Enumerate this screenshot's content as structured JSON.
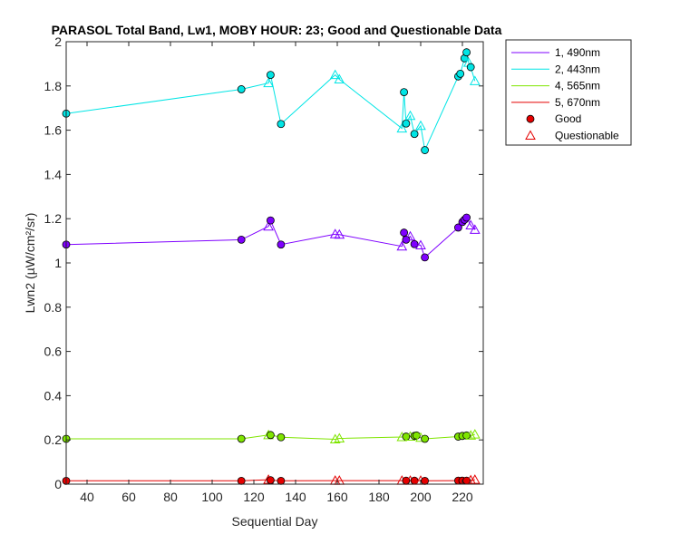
{
  "chart_data": {
    "type": "line",
    "title": "PARASOL Total Band, Lw1, MOBY HOUR: 23;  Good and Questionable Data",
    "xlabel": "Sequential Day",
    "ylabel": "Lwn2 (µW/cm²/sr)",
    "xlim": [
      30,
      230
    ],
    "ylim": [
      0,
      2
    ],
    "x_ticks": [
      40,
      60,
      80,
      100,
      120,
      140,
      160,
      180,
      200,
      220
    ],
    "y_ticks": [
      0,
      0.2,
      0.4,
      0.6,
      0.8,
      1,
      1.2,
      1.4,
      1.6,
      1.8,
      2
    ],
    "x_tick_labels": [
      "40",
      "60",
      "80",
      "100",
      "120",
      "140",
      "160",
      "180",
      "200",
      "220"
    ],
    "y_tick_labels": [
      "0",
      "0.2",
      "0.4",
      "0.6",
      "0.8",
      "1",
      "1.2",
      "1.4",
      "1.6",
      "1.8",
      "2"
    ],
    "grid": false,
    "legend_position": "outside-top-right",
    "series": [
      {
        "name": "1, 490nm",
        "color": "#7f00ff",
        "points": [
          {
            "x": 30,
            "y": 1.083,
            "q": "good"
          },
          {
            "x": 114,
            "y": 1.105,
            "q": "good"
          },
          {
            "x": 127,
            "y": 1.165,
            "q": "questionable"
          },
          {
            "x": 128,
            "y": 1.192,
            "q": "good"
          },
          {
            "x": 133,
            "y": 1.083,
            "q": "good"
          },
          {
            "x": 159,
            "y": 1.13,
            "q": "questionable"
          },
          {
            "x": 161,
            "y": 1.128,
            "q": "questionable"
          },
          {
            "x": 191,
            "y": 1.075,
            "q": "questionable"
          },
          {
            "x": 192,
            "y": 1.137,
            "q": "good"
          },
          {
            "x": 193,
            "y": 1.105,
            "q": "good"
          },
          {
            "x": 195,
            "y": 1.12,
            "q": "questionable"
          },
          {
            "x": 197,
            "y": 1.085,
            "q": "good"
          },
          {
            "x": 200,
            "y": 1.08,
            "q": "questionable"
          },
          {
            "x": 202,
            "y": 1.025,
            "q": "good"
          },
          {
            "x": 218,
            "y": 1.16,
            "q": "good"
          },
          {
            "x": 220,
            "y": 1.185,
            "q": "good"
          },
          {
            "x": 221,
            "y": 1.195,
            "q": "good"
          },
          {
            "x": 222,
            "y": 1.205,
            "q": "good"
          },
          {
            "x": 224,
            "y": 1.17,
            "q": "questionable"
          },
          {
            "x": 226,
            "y": 1.15,
            "q": "questionable"
          }
        ]
      },
      {
        "name": "2, 443nm",
        "color": "#00e5e5",
        "points": [
          {
            "x": 30,
            "y": 1.675,
            "q": "good"
          },
          {
            "x": 114,
            "y": 1.785,
            "q": "good"
          },
          {
            "x": 127,
            "y": 1.813,
            "q": "questionable"
          },
          {
            "x": 128,
            "y": 1.85,
            "q": "good"
          },
          {
            "x": 133,
            "y": 1.628,
            "q": "good"
          },
          {
            "x": 159,
            "y": 1.85,
            "q": "questionable"
          },
          {
            "x": 161,
            "y": 1.83,
            "q": "questionable"
          },
          {
            "x": 191,
            "y": 1.608,
            "q": "questionable"
          },
          {
            "x": 192,
            "y": 1.772,
            "q": "good"
          },
          {
            "x": 193,
            "y": 1.63,
            "q": "good"
          },
          {
            "x": 195,
            "y": 1.665,
            "q": "questionable"
          },
          {
            "x": 197,
            "y": 1.583,
            "q": "good"
          },
          {
            "x": 200,
            "y": 1.62,
            "q": "questionable"
          },
          {
            "x": 202,
            "y": 1.51,
            "q": "good"
          },
          {
            "x": 218,
            "y": 1.843,
            "q": "good"
          },
          {
            "x": 219,
            "y": 1.855,
            "q": "good"
          },
          {
            "x": 221,
            "y": 1.925,
            "q": "good"
          },
          {
            "x": 222,
            "y": 1.952,
            "q": "good"
          },
          {
            "x": 223,
            "y": 1.905,
            "q": "questionable"
          },
          {
            "x": 224,
            "y": 1.885,
            "q": "good"
          },
          {
            "x": 226,
            "y": 1.822,
            "q": "questionable"
          }
        ]
      },
      {
        "name": "4, 565nm",
        "color": "#7fe500",
        "points": [
          {
            "x": 30,
            "y": 0.205,
            "q": "good"
          },
          {
            "x": 114,
            "y": 0.205,
            "q": "good"
          },
          {
            "x": 127,
            "y": 0.222,
            "q": "questionable"
          },
          {
            "x": 128,
            "y": 0.222,
            "q": "good"
          },
          {
            "x": 133,
            "y": 0.212,
            "q": "good"
          },
          {
            "x": 159,
            "y": 0.203,
            "q": "questionable"
          },
          {
            "x": 161,
            "y": 0.207,
            "q": "questionable"
          },
          {
            "x": 191,
            "y": 0.213,
            "q": "questionable"
          },
          {
            "x": 193,
            "y": 0.215,
            "q": "good"
          },
          {
            "x": 195,
            "y": 0.215,
            "q": "questionable"
          },
          {
            "x": 197,
            "y": 0.218,
            "q": "good"
          },
          {
            "x": 198,
            "y": 0.22,
            "q": "good"
          },
          {
            "x": 200,
            "y": 0.21,
            "q": "questionable"
          },
          {
            "x": 202,
            "y": 0.205,
            "q": "good"
          },
          {
            "x": 218,
            "y": 0.215,
            "q": "good"
          },
          {
            "x": 220,
            "y": 0.218,
            "q": "good"
          },
          {
            "x": 222,
            "y": 0.22,
            "q": "good"
          },
          {
            "x": 224,
            "y": 0.22,
            "q": "questionable"
          },
          {
            "x": 226,
            "y": 0.225,
            "q": "questionable"
          }
        ]
      },
      {
        "name": "5, 670nm",
        "color": "#e50000",
        "points": [
          {
            "x": 30,
            "y": 0.015,
            "q": "good"
          },
          {
            "x": 114,
            "y": 0.015,
            "q": "good"
          },
          {
            "x": 127,
            "y": 0.02,
            "q": "questionable"
          },
          {
            "x": 128,
            "y": 0.018,
            "q": "good"
          },
          {
            "x": 133,
            "y": 0.015,
            "q": "good"
          },
          {
            "x": 159,
            "y": 0.016,
            "q": "questionable"
          },
          {
            "x": 161,
            "y": 0.016,
            "q": "questionable"
          },
          {
            "x": 191,
            "y": 0.016,
            "q": "questionable"
          },
          {
            "x": 193,
            "y": 0.016,
            "q": "good"
          },
          {
            "x": 195,
            "y": 0.016,
            "q": "questionable"
          },
          {
            "x": 197,
            "y": 0.016,
            "q": "good"
          },
          {
            "x": 200,
            "y": 0.016,
            "q": "questionable"
          },
          {
            "x": 202,
            "y": 0.015,
            "q": "good"
          },
          {
            "x": 218,
            "y": 0.016,
            "q": "good"
          },
          {
            "x": 220,
            "y": 0.016,
            "q": "good"
          },
          {
            "x": 222,
            "y": 0.016,
            "q": "good"
          },
          {
            "x": 224,
            "y": 0.018,
            "q": "questionable"
          },
          {
            "x": 226,
            "y": 0.02,
            "q": "questionable"
          }
        ]
      }
    ],
    "legend": [
      {
        "label": "1, 490nm",
        "kind": "line",
        "color": "#7f00ff"
      },
      {
        "label": "2, 443nm",
        "kind": "line",
        "color": "#00e5e5"
      },
      {
        "label": "4, 565nm",
        "kind": "line",
        "color": "#7fe500"
      },
      {
        "label": "5, 670nm",
        "kind": "line",
        "color": "#e50000"
      },
      {
        "label": "Good",
        "kind": "circle",
        "color": "#e50000"
      },
      {
        "label": "Questionable",
        "kind": "triangle",
        "color": "#e50000"
      }
    ]
  }
}
